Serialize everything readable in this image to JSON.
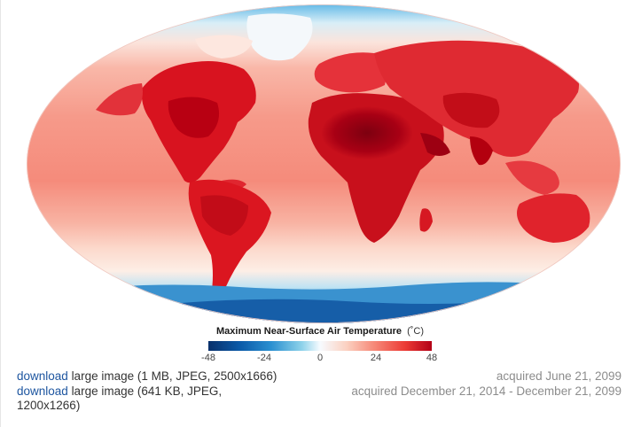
{
  "legend": {
    "title": "Maximum Near-Surface Air Temperature",
    "unit": "(˚C)",
    "ticks": [
      "-48",
      "-24",
      "0",
      "24",
      "48"
    ]
  },
  "downloads": [
    {
      "link_label": "download",
      "text": "large image (1 MB, JPEG, 2500x1666)",
      "acquired": "acquired June 21, 2099"
    },
    {
      "link_label": "download",
      "text": "large image (641 KB, JPEG, 1200x1266)",
      "acquired": "acquired December 21, 2014 - December 21, 2099"
    }
  ],
  "colors": {
    "ocean_warm": "#f6a79a",
    "land_hot": "#d9101e",
    "land_hottest": "#8b0010",
    "polar_cold": "#2a8fd0",
    "link": "#1e56a0"
  }
}
